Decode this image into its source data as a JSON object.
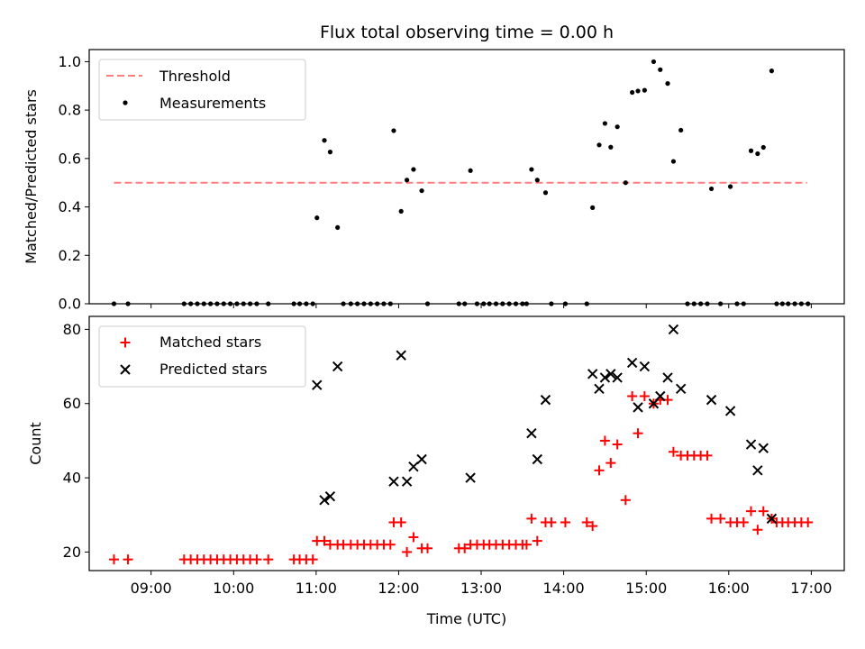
{
  "title": "Flux total observing time = 0.00 h",
  "colors": {
    "threshold": "#ff7f7f",
    "measurement": "#000000",
    "matched": "#ff0000",
    "predicted": "#000000"
  },
  "chart_data": [
    {
      "type": "scatter",
      "ylabel": "Matched/Predicted stars",
      "xlim": [
        8.25,
        17.4
      ],
      "ylim": [
        0,
        1.05
      ],
      "yticks": [
        0.0,
        0.2,
        0.4,
        0.6,
        0.8,
        1.0
      ],
      "ytick_labels": [
        "0.0",
        "0.2",
        "0.4",
        "0.6",
        "0.8",
        "1.0"
      ],
      "legend": {
        "position": "upper left",
        "threshold_label": "Threshold",
        "measurements_label": "Measurements"
      },
      "threshold": {
        "y": 0.5,
        "x_start": 8.55,
        "x_end": 16.95
      },
      "measurements": {
        "x": [
          8.55,
          8.72,
          9.4,
          9.48,
          9.56,
          9.64,
          9.72,
          9.8,
          9.88,
          9.96,
          10.04,
          10.12,
          10.2,
          10.28,
          10.42,
          10.73,
          10.8,
          10.88,
          10.96,
          11.01,
          11.1,
          11.17,
          11.26,
          11.33,
          11.42,
          11.5,
          11.58,
          11.66,
          11.74,
          11.82,
          11.9,
          11.94,
          12.03,
          12.1,
          12.18,
          12.28,
          12.35,
          12.73,
          12.8,
          12.87,
          12.95,
          13.03,
          13.1,
          13.18,
          13.26,
          13.34,
          13.42,
          13.5,
          13.55,
          13.61,
          13.68,
          13.78,
          13.85,
          14.02,
          14.28,
          14.35,
          14.43,
          14.5,
          14.57,
          14.65,
          14.75,
          14.83,
          14.9,
          14.98,
          15.09,
          15.17,
          15.26,
          15.33,
          15.42,
          15.5,
          15.58,
          15.66,
          15.74,
          15.79,
          15.9,
          16.02,
          16.1,
          16.18,
          16.27,
          16.35,
          16.42,
          16.52,
          16.58,
          16.65,
          16.72,
          16.8,
          16.88,
          16.96
        ],
        "y": [
          0,
          0,
          0,
          0,
          0,
          0,
          0,
          0,
          0,
          0,
          0,
          0,
          0,
          0,
          0,
          0,
          0,
          0,
          0,
          0.355,
          0.675,
          0.627,
          0.315,
          0,
          0,
          0,
          0,
          0,
          0,
          0,
          0,
          0.715,
          0.382,
          0.511,
          0.555,
          0.467,
          0,
          0,
          0,
          0.55,
          0,
          0,
          0,
          0,
          0,
          0,
          0,
          0,
          0,
          0.555,
          0.511,
          0.459,
          0,
          0,
          0,
          0.397,
          0.656,
          0.745,
          0.647,
          0.731,
          0.5,
          0.873,
          0.879,
          0.882,
          1.0,
          0.967,
          0.91,
          0.588,
          0.717,
          0,
          0,
          0,
          0,
          0.475,
          0,
          0.484,
          0,
          0,
          0.632,
          0.62,
          0.646,
          0.962,
          0,
          0,
          0,
          0,
          0,
          0
        ]
      }
    },
    {
      "type": "scatter",
      "xlabel": "Time (UTC)",
      "ylabel": "Count",
      "xlim": [
        8.25,
        17.4
      ],
      "ylim": [
        15,
        83.5
      ],
      "yticks": [
        20,
        40,
        60,
        80
      ],
      "ytick_labels": [
        "20",
        "40",
        "60",
        "80"
      ],
      "xticks": [
        9,
        10,
        11,
        12,
        13,
        14,
        15,
        16,
        17
      ],
      "xtick_labels": [
        "09:00",
        "10:00",
        "11:00",
        "12:00",
        "13:00",
        "14:00",
        "15:00",
        "16:00",
        "17:00"
      ],
      "legend": {
        "position": "upper left",
        "matched_label": "Matched stars",
        "predicted_label": "Predicted stars"
      },
      "matched": {
        "x": [
          8.55,
          8.72,
          9.4,
          9.48,
          9.56,
          9.64,
          9.72,
          9.8,
          9.88,
          9.96,
          10.04,
          10.12,
          10.2,
          10.28,
          10.42,
          10.73,
          10.8,
          10.88,
          10.96,
          11.01,
          11.1,
          11.17,
          11.26,
          11.33,
          11.42,
          11.5,
          11.58,
          11.66,
          11.74,
          11.82,
          11.9,
          11.94,
          12.03,
          12.1,
          12.18,
          12.28,
          12.35,
          12.73,
          12.8,
          12.87,
          12.95,
          13.03,
          13.1,
          13.18,
          13.26,
          13.34,
          13.42,
          13.5,
          13.55,
          13.61,
          13.68,
          13.78,
          13.85,
          14.02,
          14.28,
          14.35,
          14.43,
          14.5,
          14.57,
          14.65,
          14.75,
          14.83,
          14.9,
          14.98,
          15.09,
          15.17,
          15.26,
          15.33,
          15.42,
          15.5,
          15.58,
          15.66,
          15.74,
          15.79,
          15.9,
          16.02,
          16.1,
          16.18,
          16.27,
          16.35,
          16.42,
          16.52,
          16.58,
          16.65,
          16.72,
          16.8,
          16.88,
          16.96
        ],
        "y": [
          18,
          18,
          18,
          18,
          18,
          18,
          18,
          18,
          18,
          18,
          18,
          18,
          18,
          18,
          18,
          18,
          18,
          18,
          18,
          23,
          23,
          22,
          22,
          22,
          22,
          22,
          22,
          22,
          22,
          22,
          22,
          28,
          28,
          20,
          24,
          21,
          21,
          21,
          21,
          22,
          22,
          22,
          22,
          22,
          22,
          22,
          22,
          22,
          22,
          29,
          23,
          28,
          28,
          28,
          28,
          27,
          42,
          50,
          44,
          49,
          34,
          62,
          52,
          62,
          60,
          61,
          61,
          47,
          46,
          46,
          46,
          46,
          46,
          29,
          29,
          28,
          28,
          28,
          31,
          26,
          31,
          29,
          28,
          28,
          28,
          28,
          28,
          28
        ]
      },
      "predicted": {
        "x": [
          11.01,
          11.1,
          11.17,
          11.26,
          11.94,
          12.03,
          12.1,
          12.18,
          12.28,
          12.87,
          13.61,
          13.68,
          13.78,
          14.35,
          14.43,
          14.5,
          14.57,
          14.65,
          14.83,
          14.9,
          14.98,
          15.09,
          15.17,
          15.26,
          15.33,
          15.42,
          15.79,
          16.02,
          16.27,
          16.35,
          16.42,
          16.52
        ],
        "y": [
          65,
          34,
          35,
          70,
          39,
          73,
          39,
          43,
          45,
          40,
          52,
          45,
          61,
          68,
          64,
          67,
          68,
          67,
          71,
          59,
          70,
          60,
          62,
          67,
          80,
          64,
          61,
          58,
          49,
          42,
          48,
          29
        ]
      }
    }
  ]
}
